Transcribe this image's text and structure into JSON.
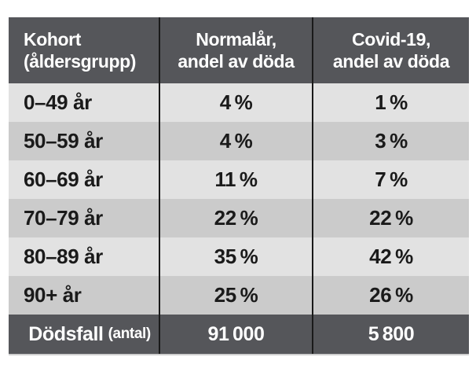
{
  "colors": {
    "header_footer_bg": "#55565a",
    "row_light_bg": "#e2e2e2",
    "row_dark_bg": "#cbcbcb",
    "divider": "#1a1a1a",
    "text_dark": "#1a1a1a",
    "text_light": "#ffffff",
    "page_bg": "#ffffff"
  },
  "table": {
    "header": [
      {
        "line1": "Kohort",
        "line2": "(åldersgrupp)"
      },
      {
        "line1": "Normalår,",
        "line2": "andel av döda"
      },
      {
        "line1": "Covid-19,",
        "line2": "andel av döda"
      }
    ],
    "rows": [
      {
        "cohort": "0–49 år",
        "normal": "4 %",
        "covid": "1 %"
      },
      {
        "cohort": "50–59 år",
        "normal": "4 %",
        "covid": "3 %"
      },
      {
        "cohort": "60–69 år",
        "normal": "11 %",
        "covid": "7 %"
      },
      {
        "cohort": "70–79 år",
        "normal": "22 %",
        "covid": "22 %"
      },
      {
        "cohort": "80–89 år",
        "normal": "35 %",
        "covid": "42 %"
      },
      {
        "cohort": "90+ år",
        "normal": "25 %",
        "covid": "26 %"
      }
    ],
    "footer": {
      "label": "Dödsfall",
      "label_small": "(antal)",
      "normal": "91 000",
      "covid": "5 800"
    }
  },
  "chart_data": {
    "type": "table",
    "title": "",
    "columns": [
      "Kohort (åldersgrupp)",
      "Normalår, andel av döda",
      "Covid-19, andel av döda"
    ],
    "categories": [
      "0–49 år",
      "50–59 år",
      "60–69 år",
      "70–79 år",
      "80–89 år",
      "90+ år"
    ],
    "series": [
      {
        "name": "Normalår, andel av döda",
        "unit": "%",
        "values": [
          4,
          4,
          11,
          22,
          35,
          25
        ]
      },
      {
        "name": "Covid-19, andel av döda",
        "unit": "%",
        "values": [
          1,
          3,
          7,
          22,
          42,
          26
        ]
      }
    ],
    "totals": {
      "label": "Dödsfall (antal)",
      "normalar_antal": 91000,
      "covid19_antal": 5800
    }
  }
}
